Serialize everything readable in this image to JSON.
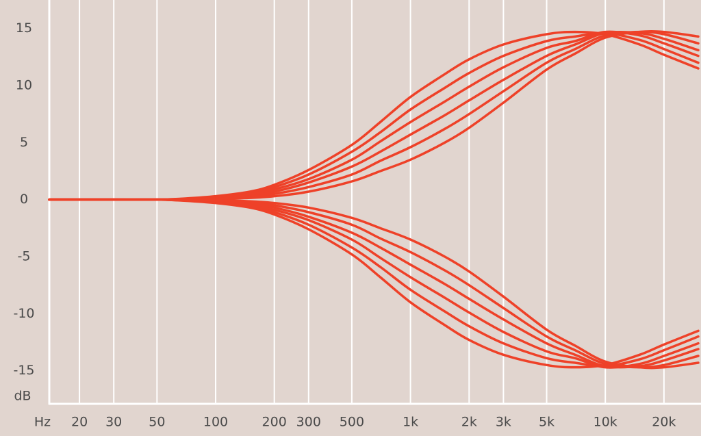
{
  "chart_data": {
    "type": "line",
    "x_label": "Hz",
    "y_label": "dB",
    "log_x": true,
    "grid_x": true,
    "color": "#ee4128",
    "x": [
      14,
      20,
      30,
      50,
      70,
      100,
      150,
      200,
      300,
      500,
      700,
      1000,
      1500,
      2000,
      3000,
      5000,
      7000,
      10000,
      15000,
      20000,
      30000
    ],
    "xlim": [
      14,
      30000
    ],
    "xticks": [
      20,
      30,
      50,
      100,
      200,
      300,
      500,
      {
        "value": 1000,
        "label": "1k"
      },
      {
        "value": 2000,
        "label": "2k"
      },
      {
        "value": 3000,
        "label": "3k"
      },
      {
        "value": 5000,
        "label": "5k"
      },
      {
        "value": 10000,
        "label": "10k"
      },
      {
        "value": 20000,
        "label": "20k"
      }
    ],
    "ylim": [
      -17.9,
      17.5
    ],
    "yticks": [
      -15,
      -10,
      -5,
      0,
      5,
      10,
      15
    ],
    "series": [
      {
        "color": "#ee4128",
        "values": [
          0,
          0,
          0,
          0,
          0.1,
          0.3,
          0.7,
          1.3,
          2.6,
          4.8,
          6.8,
          9,
          11,
          12.3,
          13.6,
          14.5,
          14.7,
          14.5,
          13.6,
          12.7,
          11.5
        ]
      },
      {
        "color": "#ee4128",
        "values": [
          0,
          0,
          0,
          0,
          0.08,
          0.25,
          0.59,
          1.1,
          2.2,
          4.2,
          5.9,
          7.9,
          9.8,
          11.1,
          12.6,
          13.9,
          14.3,
          14.6,
          14,
          13.2,
          12
        ]
      },
      {
        "color": "#ee4128",
        "values": [
          0,
          0,
          0,
          0,
          0.06,
          0.2,
          0.48,
          0.9,
          1.8,
          3.5,
          5.1,
          6.8,
          8.6,
          9.9,
          11.6,
          13.3,
          13.9,
          14.7,
          14.4,
          13.7,
          12.6
        ]
      },
      {
        "color": "#ee4128",
        "values": [
          0,
          0,
          0,
          0,
          0.04,
          0.15,
          0.37,
          0.7,
          1.5,
          2.9,
          4.2,
          5.7,
          7.4,
          8.7,
          10.5,
          12.6,
          13.6,
          14.6,
          14.6,
          14.1,
          13.1
        ]
      },
      {
        "color": "#ee4128",
        "values": [
          0,
          0,
          0,
          0,
          0.02,
          0.1,
          0.26,
          0.5,
          1.1,
          2.2,
          3.4,
          4.6,
          6.2,
          7.5,
          9.5,
          12,
          13.2,
          14.4,
          14.7,
          14.5,
          13.7
        ]
      },
      {
        "color": "#ee4128",
        "values": [
          0,
          0,
          0,
          0,
          0,
          0.05,
          0.15,
          0.3,
          0.7,
          1.6,
          2.5,
          3.5,
          5,
          6.3,
          8.5,
          11.4,
          12.8,
          14.2,
          14.7,
          14.7,
          14.3
        ]
      },
      {
        "color": "#ee4128",
        "values": [
          0,
          0,
          0,
          0,
          -0.1,
          -0.3,
          -0.7,
          -1.3,
          -2.6,
          -4.8,
          -6.8,
          -9,
          -11,
          -12.3,
          -13.6,
          -14.5,
          -14.7,
          -14.5,
          -13.6,
          -12.7,
          -11.5
        ]
      },
      {
        "color": "#ee4128",
        "values": [
          0,
          0,
          0,
          0,
          -0.08,
          -0.25,
          -0.59,
          -1.1,
          -2.2,
          -4.2,
          -5.9,
          -7.9,
          -9.8,
          -11.1,
          -12.6,
          -13.9,
          -14.3,
          -14.6,
          -14,
          -13.2,
          -12
        ]
      },
      {
        "color": "#ee4128",
        "values": [
          0,
          0,
          0,
          0,
          -0.06,
          -0.2,
          -0.48,
          -0.9,
          -1.8,
          -3.5,
          -5.1,
          -6.8,
          -8.6,
          -9.9,
          -11.6,
          -13.3,
          -13.9,
          -14.7,
          -14.4,
          -13.7,
          -12.6
        ]
      },
      {
        "color": "#ee4128",
        "values": [
          0,
          0,
          0,
          0,
          -0.04,
          -0.15,
          -0.37,
          -0.7,
          -1.5,
          -2.9,
          -4.2,
          -5.7,
          -7.4,
          -8.7,
          -10.5,
          -12.6,
          -13.6,
          -14.6,
          -14.6,
          -14.1,
          -13.1
        ]
      },
      {
        "color": "#ee4128",
        "values": [
          0,
          0,
          0,
          0,
          -0.02,
          -0.1,
          -0.26,
          -0.5,
          -1.1,
          -2.2,
          -3.4,
          -4.6,
          -6.2,
          -7.5,
          -9.5,
          -12,
          -13.2,
          -14.4,
          -14.7,
          -14.5,
          -13.7
        ]
      },
      {
        "color": "#ee4128",
        "values": [
          0,
          0,
          0,
          0,
          0,
          -0.05,
          -0.15,
          -0.3,
          -0.7,
          -1.6,
          -2.5,
          -3.5,
          -5,
          -6.3,
          -8.5,
          -11.4,
          -12.8,
          -14.2,
          -14.7,
          -14.7,
          -14.3
        ]
      }
    ]
  }
}
